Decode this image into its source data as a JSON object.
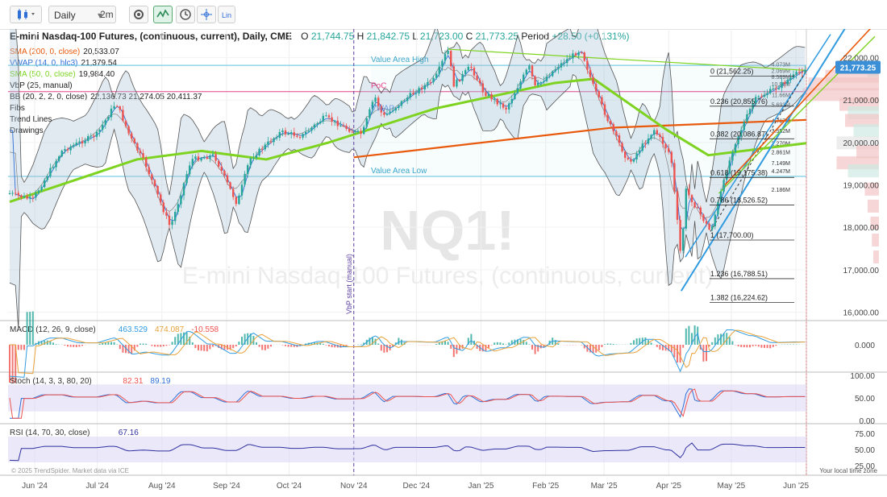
{
  "toolbar": {
    "interval": "Daily",
    "interval_short": "2m",
    "scale_label": "Lin"
  },
  "header": {
    "title": "E-mini Nasdaq-100 Futures, (continuous, current), Daily, CME",
    "o_label": "O",
    "o": "21,744.75",
    "h_label": "H",
    "h": "21,842.75",
    "l_label": "L",
    "l": "21,723.00",
    "c_label": "C",
    "c": "21,773.25",
    "period_label": "Period",
    "period": "+28.50 (+0.131%)"
  },
  "indicators": [
    {
      "label": "SMA (200, 0, close)",
      "value": "20,533.07",
      "color": "#e8590c"
    },
    {
      "label": "VWAP (14, 0, hlc3)",
      "value": "21,379.54",
      "color": "#2f6fd6"
    },
    {
      "label": "SMA (50, 0, close)",
      "value": "19,984.40",
      "color": "#7ed321"
    },
    {
      "label": "VbP (25, manual)",
      "value": "",
      "color": "#333333"
    },
    {
      "label": "BB (20, 2, 2, 0, close)",
      "value": "22,136.73 21,274.05 20,411.37",
      "color": "#333333"
    },
    {
      "label": "Fibs",
      "value": "",
      "color": "#333333"
    },
    {
      "label": "Trend Lines",
      "value": "",
      "color": "#333333"
    },
    {
      "label": "Drawings",
      "value": "",
      "color": "#333333"
    }
  ],
  "watermark": {
    "symbol": "NQ1!",
    "name": "E-mini Nasdaq-100 Futures, (continuous, current)"
  },
  "annotations": {
    "value_area_high": "Value Area High",
    "poc": "PoC",
    "vwap": "VWAP",
    "value_area_low": "Value Area Low",
    "vbp_start": "VbP start (manual)"
  },
  "fib_levels": [
    {
      "label": "0 (21,562.25)",
      "price": 21562.25
    },
    {
      "label": "0.236 (20,855.76)",
      "price": 20855.76
    },
    {
      "label": "0.382 (20,086.87)",
      "price": 20086.87
    },
    {
      "label": "0.618 (19,175.38)",
      "price": 19175.38
    },
    {
      "label": "0.786 (18,526.52)",
      "price": 18526.52
    },
    {
      "label": "1 (17,700.00)",
      "price": 17700.0
    },
    {
      "label": "1.236 (16,788.51)",
      "price": 16788.51
    },
    {
      "label": "1.382 (16,224.62)",
      "price": 16224.62
    }
  ],
  "vbp_labels": [
    {
      "label": "2.069M",
      "price": 21700
    },
    {
      "label": "4.073M",
      "price": 21850
    },
    {
      "label": "8.589M",
      "price": 21560
    },
    {
      "label": "10.96M",
      "price": 21380
    },
    {
      "label": "11.66M",
      "price": 21130
    },
    {
      "label": "5.693M",
      "price": 20900
    },
    {
      "label": "4.767M",
      "price": 20520
    },
    {
      "label": "3.552M",
      "price": 20280
    },
    {
      "label": "2.270M",
      "price": 19990
    },
    {
      "label": "2.861M",
      "price": 19780
    },
    {
      "label": "7.149M",
      "price": 19520
    },
    {
      "label": "4.247M",
      "price": 19330
    },
    {
      "label": "2.186M",
      "price": 18900
    }
  ],
  "panes": {
    "macd": {
      "label": "MACD (12, 26, 9, close)",
      "v1": "463.529",
      "v2": "474.087",
      "v3": "-10.558",
      "axis": [
        "0.000"
      ]
    },
    "stoch": {
      "label": "Stoch (14, 3, 3, 80, 20)",
      "v1": "82.31",
      "v2": "89.19",
      "axis": [
        "100.00",
        "50.00",
        "0.00"
      ]
    },
    "rsi": {
      "label": "RSI (14, 70, 30, close)",
      "v1": "67.16",
      "axis": [
        "75.00",
        "50.00",
        "25.00"
      ]
    }
  },
  "footer": {
    "copyright": "© 2025 TrendSpider. Market data via ICE",
    "local_time": "Your local time zone"
  },
  "chart_data": {
    "type": "candlestick",
    "title": "E-mini Nasdaq-100 Futures, (continuous, current), Daily, CME",
    "y_ticks": [
      "22,000.00",
      "21,000.00",
      "20,000.00",
      "19,000.00",
      "18,000.00",
      "17,000.00",
      "16,000.00"
    ],
    "y_tick_values": [
      22000,
      21000,
      20000,
      19000,
      18000,
      17000,
      16000
    ],
    "last_price": "21,773.25",
    "x_ticks": [
      "Jun '24",
      "Jul '24",
      "Aug '24",
      "Sep '24",
      "Oct '24",
      "Nov '24",
      "Dec '24",
      "Jan '25",
      "Feb '25",
      "Mar '25",
      "Apr '25",
      "May '25",
      "Jun '25"
    ],
    "ylim": [
      15800,
      22600
    ],
    "close_path": [
      [
        "2024-05-20",
        18800
      ],
      [
        "2024-05-31",
        18650
      ],
      [
        "2024-06-14",
        19800
      ],
      [
        "2024-07-01",
        20200
      ],
      [
        "2024-07-10",
        20950
      ],
      [
        "2024-07-17",
        20100
      ],
      [
        "2024-07-24",
        19500
      ],
      [
        "2024-08-05",
        18000
      ],
      [
        "2024-08-07",
        18300
      ],
      [
        "2024-08-15",
        19600
      ],
      [
        "2024-08-26",
        19700
      ],
      [
        "2024-09-06",
        18550
      ],
      [
        "2024-09-12",
        19600
      ],
      [
        "2024-09-27",
        20250
      ],
      [
        "2024-10-07",
        20150
      ],
      [
        "2024-10-18",
        20600
      ],
      [
        "2024-11-01",
        20250
      ],
      [
        "2024-11-05",
        20200
      ],
      [
        "2024-11-11",
        21100
      ],
      [
        "2024-11-15",
        20600
      ],
      [
        "2024-11-29",
        21150
      ],
      [
        "2024-12-10",
        21500
      ],
      [
        "2024-12-16",
        22200
      ],
      [
        "2024-12-19",
        21350
      ],
      [
        "2024-12-27",
        21800
      ],
      [
        "2025-01-02",
        21200
      ],
      [
        "2025-01-13",
        20800
      ],
      [
        "2025-01-24",
        21800
      ],
      [
        "2025-01-27",
        21300
      ],
      [
        "2025-02-07",
        21800
      ],
      [
        "2025-02-18",
        22200
      ],
      [
        "2025-02-24",
        21300
      ],
      [
        "2025-03-04",
        20400
      ],
      [
        "2025-03-13",
        19500
      ],
      [
        "2025-03-25",
        20300
      ],
      [
        "2025-04-02",
        19700
      ],
      [
        "2025-04-07",
        17200
      ],
      [
        "2025-04-09",
        18900
      ],
      [
        "2025-04-21",
        17900
      ],
      [
        "2025-05-02",
        19900
      ],
      [
        "2025-05-12",
        21000
      ],
      [
        "2025-05-23",
        21300
      ],
      [
        "2025-06-06",
        21773
      ]
    ],
    "series": [
      {
        "name": "SMA (200, 0, close)",
        "values": [
          [
            "2024-11-01",
            19650
          ],
          [
            "2025-03-05",
            20350
          ],
          [
            "2025-06-06",
            20533
          ]
        ]
      },
      {
        "name": "SMA (50, 0, close)",
        "values": [
          [
            "2024-05-20",
            18600
          ],
          [
            "2024-07-20",
            19600
          ],
          [
            "2024-08-20",
            19800
          ],
          [
            "2024-09-20",
            19600
          ],
          [
            "2024-10-20",
            20000
          ],
          [
            "2024-12-10",
            20800
          ],
          [
            "2025-02-05",
            21400
          ],
          [
            "2025-02-24",
            21500
          ],
          [
            "2025-03-31",
            20300
          ],
          [
            "2025-04-20",
            19700
          ],
          [
            "2025-06-06",
            19984
          ]
        ]
      }
    ],
    "vbp_prices": {
      "value_area_high": 21820,
      "poc": 21200,
      "value_area_low": 19200
    }
  }
}
